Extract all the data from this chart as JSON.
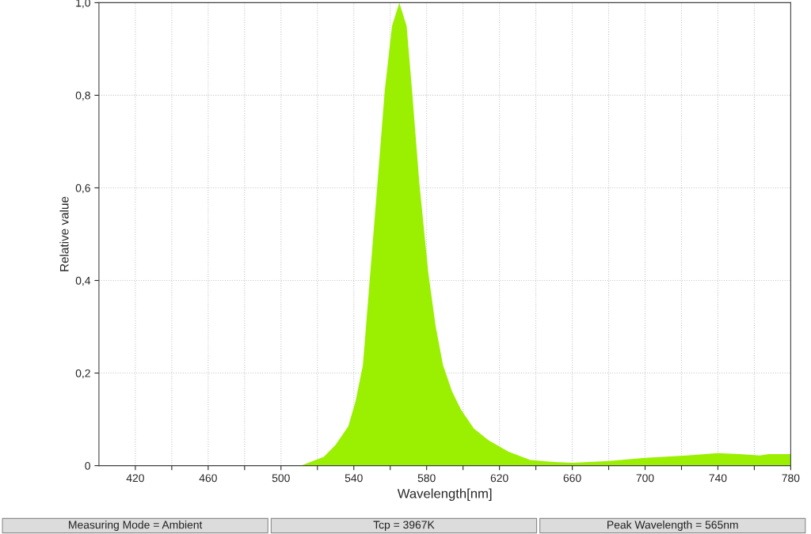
{
  "chart_data": {
    "type": "area",
    "xlabel": "Wavelength[nm]",
    "ylabel": "Relative value",
    "x": [
      511,
      523.5,
      530,
      537,
      541,
      545,
      549,
      553,
      557,
      561,
      565,
      569,
      572,
      576,
      581,
      585,
      589,
      594,
      599,
      606,
      614,
      625,
      637,
      650,
      660,
      680,
      700,
      723,
      740,
      752,
      763,
      768,
      780
    ],
    "series": [
      {
        "color": "#9af000",
        "values": [
          0,
          0.019,
          0.045,
          0.085,
          0.14,
          0.217,
          0.414,
          0.61,
          0.81,
          0.95,
          1.0,
          0.95,
          0.81,
          0.61,
          0.414,
          0.3,
          0.217,
          0.16,
          0.12,
          0.08,
          0.055,
          0.03,
          0.012,
          0.008,
          0.006,
          0.01,
          0.017,
          0.022,
          0.027,
          0.025,
          0.022,
          0.025,
          0.025
        ]
      }
    ],
    "xlim": [
      400,
      780
    ],
    "ylim": [
      0,
      1.0
    ],
    "xticks": [
      {
        "value": 420,
        "label": "420"
      },
      {
        "value": 440,
        "label": null
      },
      {
        "value": 460,
        "label": "460"
      },
      {
        "value": 480,
        "label": null
      },
      {
        "value": 500,
        "label": "500"
      },
      {
        "value": 520,
        "label": null
      },
      {
        "value": 540,
        "label": "540"
      },
      {
        "value": 560,
        "label": null
      },
      {
        "value": 580,
        "label": "580"
      },
      {
        "value": 600,
        "label": null
      },
      {
        "value": 620,
        "label": "620"
      },
      {
        "value": 640,
        "label": null
      },
      {
        "value": 660,
        "label": "660"
      },
      {
        "value": 680,
        "label": null
      },
      {
        "value": 700,
        "label": "700"
      },
      {
        "value": 720,
        "label": null
      },
      {
        "value": 740,
        "label": "740"
      },
      {
        "value": 760,
        "label": null
      },
      {
        "value": 780,
        "label": "780"
      }
    ],
    "yticks": [
      {
        "value": 0,
        "label": "0"
      },
      {
        "value": 0.2,
        "label": "0,2"
      },
      {
        "value": 0.4,
        "label": "0,4"
      },
      {
        "value": 0.6,
        "label": "0,6"
      },
      {
        "value": 0.8,
        "label": "0,8"
      },
      {
        "value": 1.0,
        "label": "1,0"
      }
    ],
    "grid": true,
    "legend": false,
    "annotations": [
      "Measuring Mode = Ambient",
      "Tcp = 3967K",
      "Peak Wavelength = 565nm"
    ]
  }
}
